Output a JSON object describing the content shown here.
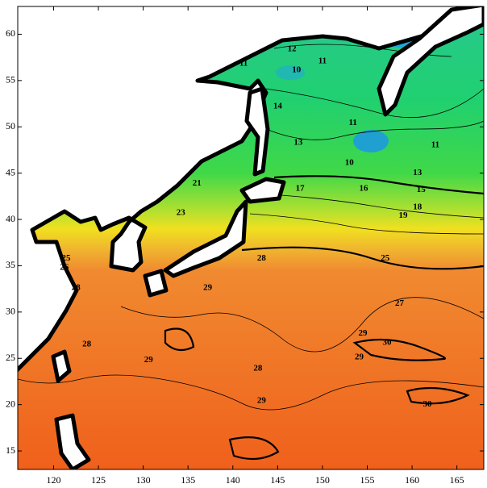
{
  "map": {
    "type": "contour",
    "xlim": [
      116,
      168
    ],
    "ylim": [
      13,
      63
    ],
    "xticks": [
      120,
      125,
      130,
      135,
      140,
      145,
      150,
      155,
      160,
      165
    ],
    "yticks": [
      15,
      20,
      25,
      30,
      35,
      40,
      45,
      50,
      55,
      60
    ],
    "contour_labels": [
      {
        "value": 12,
        "lon": 146.6,
        "lat": 58.4
      },
      {
        "value": 11,
        "lon": 150.0,
        "lat": 57.1
      },
      {
        "value": 11,
        "lon": 141.2,
        "lat": 56.8
      },
      {
        "value": 10,
        "lon": 147.1,
        "lat": 56.1
      },
      {
        "value": 14,
        "lon": 145.0,
        "lat": 52.2
      },
      {
        "value": 11,
        "lon": 153.4,
        "lat": 50.4
      },
      {
        "value": 13,
        "lon": 147.3,
        "lat": 48.3
      },
      {
        "value": 11,
        "lon": 162.6,
        "lat": 48.0
      },
      {
        "value": 10,
        "lon": 153.0,
        "lat": 46.1
      },
      {
        "value": 13,
        "lon": 160.6,
        "lat": 45.0
      },
      {
        "value": 15,
        "lon": 161.0,
        "lat": 43.2
      },
      {
        "value": 17,
        "lon": 147.5,
        "lat": 43.3
      },
      {
        "value": 16,
        "lon": 154.6,
        "lat": 43.3
      },
      {
        "value": 18,
        "lon": 160.6,
        "lat": 41.3
      },
      {
        "value": 19,
        "lon": 159.0,
        "lat": 40.4
      },
      {
        "value": 21,
        "lon": 136.0,
        "lat": 43.9
      },
      {
        "value": 23,
        "lon": 134.2,
        "lat": 40.7
      },
      {
        "value": 25,
        "lon": 121.4,
        "lat": 35.8
      },
      {
        "value": 26,
        "lon": 121.2,
        "lat": 34.8
      },
      {
        "value": 28,
        "lon": 143.2,
        "lat": 35.8
      },
      {
        "value": 25,
        "lon": 157.0,
        "lat": 35.8
      },
      {
        "value": 28,
        "lon": 122.5,
        "lat": 32.6
      },
      {
        "value": 29,
        "lon": 137.2,
        "lat": 32.6
      },
      {
        "value": 27,
        "lon": 158.6,
        "lat": 30.9
      },
      {
        "value": 28,
        "lon": 123.7,
        "lat": 26.5
      },
      {
        "value": 29,
        "lon": 154.5,
        "lat": 27.7
      },
      {
        "value": 30,
        "lon": 157.2,
        "lat": 26.7
      },
      {
        "value": 29,
        "lon": 130.6,
        "lat": 24.8
      },
      {
        "value": 29,
        "lon": 154.1,
        "lat": 25.1
      },
      {
        "value": 28,
        "lon": 142.8,
        "lat": 23.9
      },
      {
        "value": 29,
        "lon": 143.2,
        "lat": 20.4
      },
      {
        "value": 30,
        "lon": 161.7,
        "lat": 20.0
      }
    ]
  }
}
